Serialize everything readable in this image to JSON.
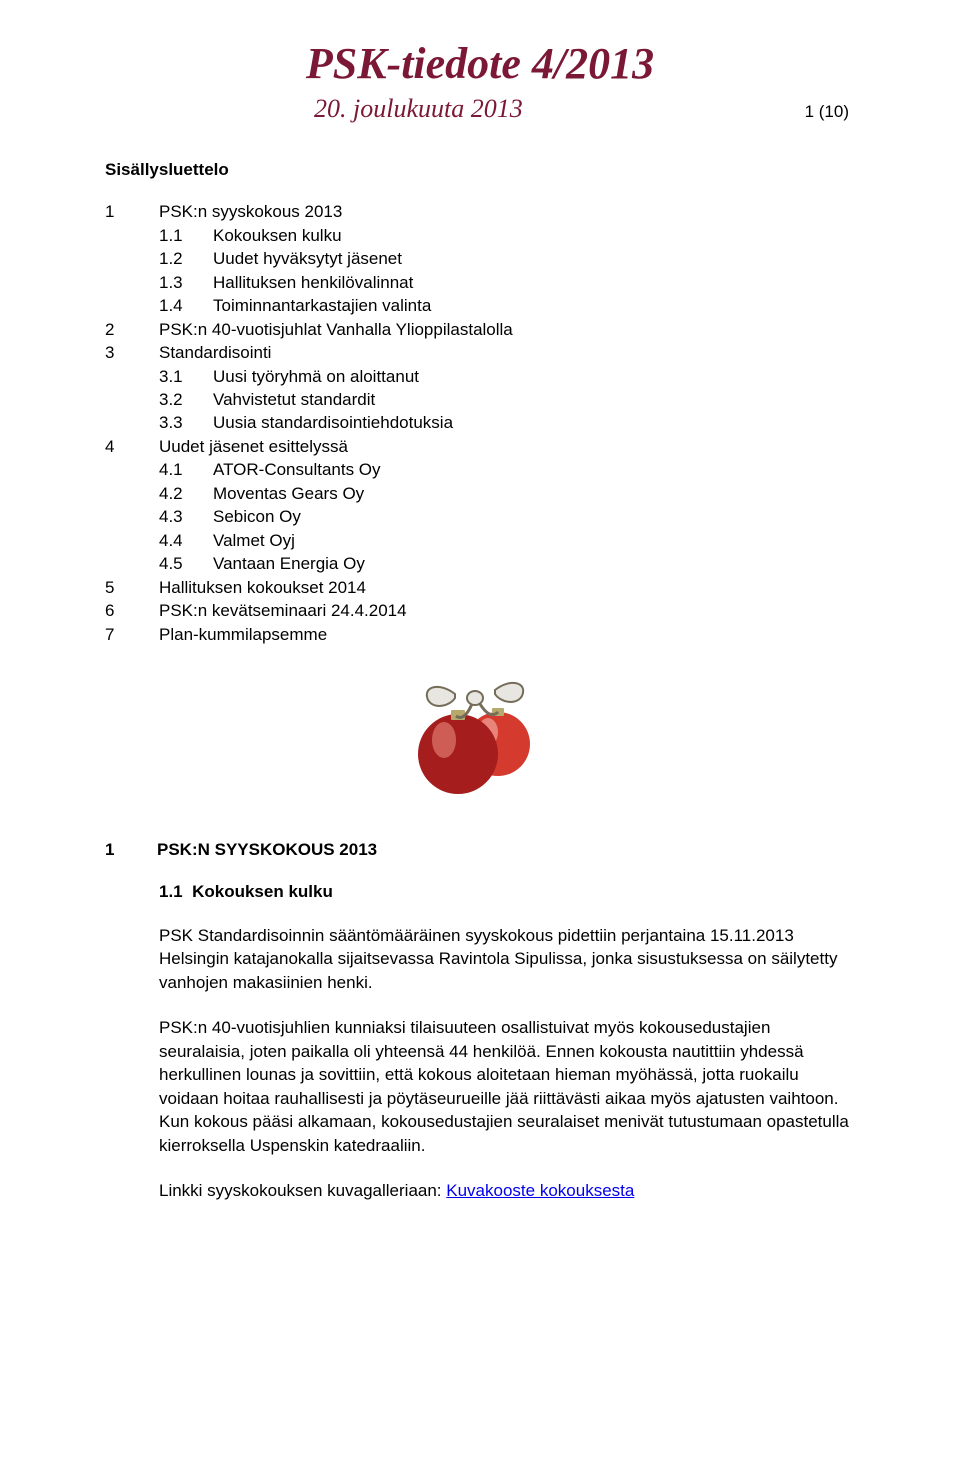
{
  "colors": {
    "title_color": "#7a1836",
    "text_color": "#000000",
    "link_color": "#0000ee",
    "background": "#ffffff"
  },
  "typography": {
    "title_font": "Monotype Corsiva",
    "title_size_pt": 32,
    "body_font": "Arial",
    "body_size_pt": 12
  },
  "header": {
    "title": "PSK-tiedote 4/2013",
    "date": "20. joulukuuta 2013",
    "page_indicator": "1 (10)"
  },
  "toc_heading": "Sisällysluettelo",
  "toc": [
    {
      "num": "1",
      "label": "PSK:n syyskokous 2013",
      "indent": 0
    },
    {
      "num": "1.1",
      "label": "Kokouksen kulku",
      "indent": 1
    },
    {
      "num": "1.2",
      "label": "Uudet hyväksytyt jäsenet",
      "indent": 1
    },
    {
      "num": "1.3",
      "label": "Hallituksen henkilövalinnat",
      "indent": 1
    },
    {
      "num": "1.4",
      "label": "Toiminnantarkastajien valinta",
      "indent": 1
    },
    {
      "num": "2",
      "label": "PSK:n 40-vuotisjuhlat Vanhalla Ylioppilastalolla",
      "indent": 0
    },
    {
      "num": "3",
      "label": "Standardisointi",
      "indent": 0
    },
    {
      "num": "3.1",
      "label": "Uusi työryhmä on aloittanut",
      "indent": 1
    },
    {
      "num": "3.2",
      "label": "Vahvistetut standardit",
      "indent": 1
    },
    {
      "num": "3.3",
      "label": "Uusia standardisointiehdotuksia",
      "indent": 1
    },
    {
      "num": "4",
      "label": "Uudet jäsenet esittelyssä",
      "indent": 0
    },
    {
      "num": "4.1",
      "label": "ATOR-Consultants Oy",
      "indent": 1
    },
    {
      "num": "4.2",
      "label": "Moventas Gears Oy",
      "indent": 1
    },
    {
      "num": "4.3",
      "label": "Sebicon Oy",
      "indent": 1
    },
    {
      "num": "4.4",
      "label": "Valmet Oyj",
      "indent": 1
    },
    {
      "num": "4.5",
      "label": "Vantaan Energia Oy",
      "indent": 1
    },
    {
      "num": "5",
      "label": "Hallituksen kokoukset 2014",
      "indent": 0
    },
    {
      "num": "6",
      "label": "PSK:n kevätseminaari 24.4.2014",
      "indent": 0
    },
    {
      "num": "7",
      "label": "Plan-kummilapsemme",
      "indent": 0
    }
  ],
  "section1": {
    "num": "1",
    "title": "PSK:N SYYSKOKOUS 2013"
  },
  "section1_1": {
    "num": "1.1",
    "title": "Kokouksen kulku"
  },
  "paragraphs": {
    "p1": "PSK Standardisoinnin sääntömääräinen syyskokous pidettiin perjantaina 15.11.2013 Helsingin katajanokalla sijaitsevassa Ravintola Sipulissa, jonka sisustuksessa on säilytetty vanhojen makasiinien henki.",
    "p2": "PSK:n 40-vuotisjuhlien kunniaksi tilaisuuteen osallistuivat myös kokousedustajien seuralaisia, joten paikalla oli yhteensä 44 henkilöä. Ennen kokousta nautittiin yhdessä herkullinen lounas ja sovittiin, että kokous aloitetaan hieman myöhässä, jotta ruokailu voidaan hoitaa rauhallisesti ja pöytäseurueille jää riittävästi aikaa myös ajatusten vaihtoon. Kun kokous pääsi alkamaan, kokousedustajien seuralaiset menivät tutustumaan opastetulla kierroksella Uspenskin katedraaliin.",
    "p3_prefix": "Linkki syyskokouksen kuvagalleriaan: ",
    "p3_link": "Kuvakooste kokouksesta"
  }
}
